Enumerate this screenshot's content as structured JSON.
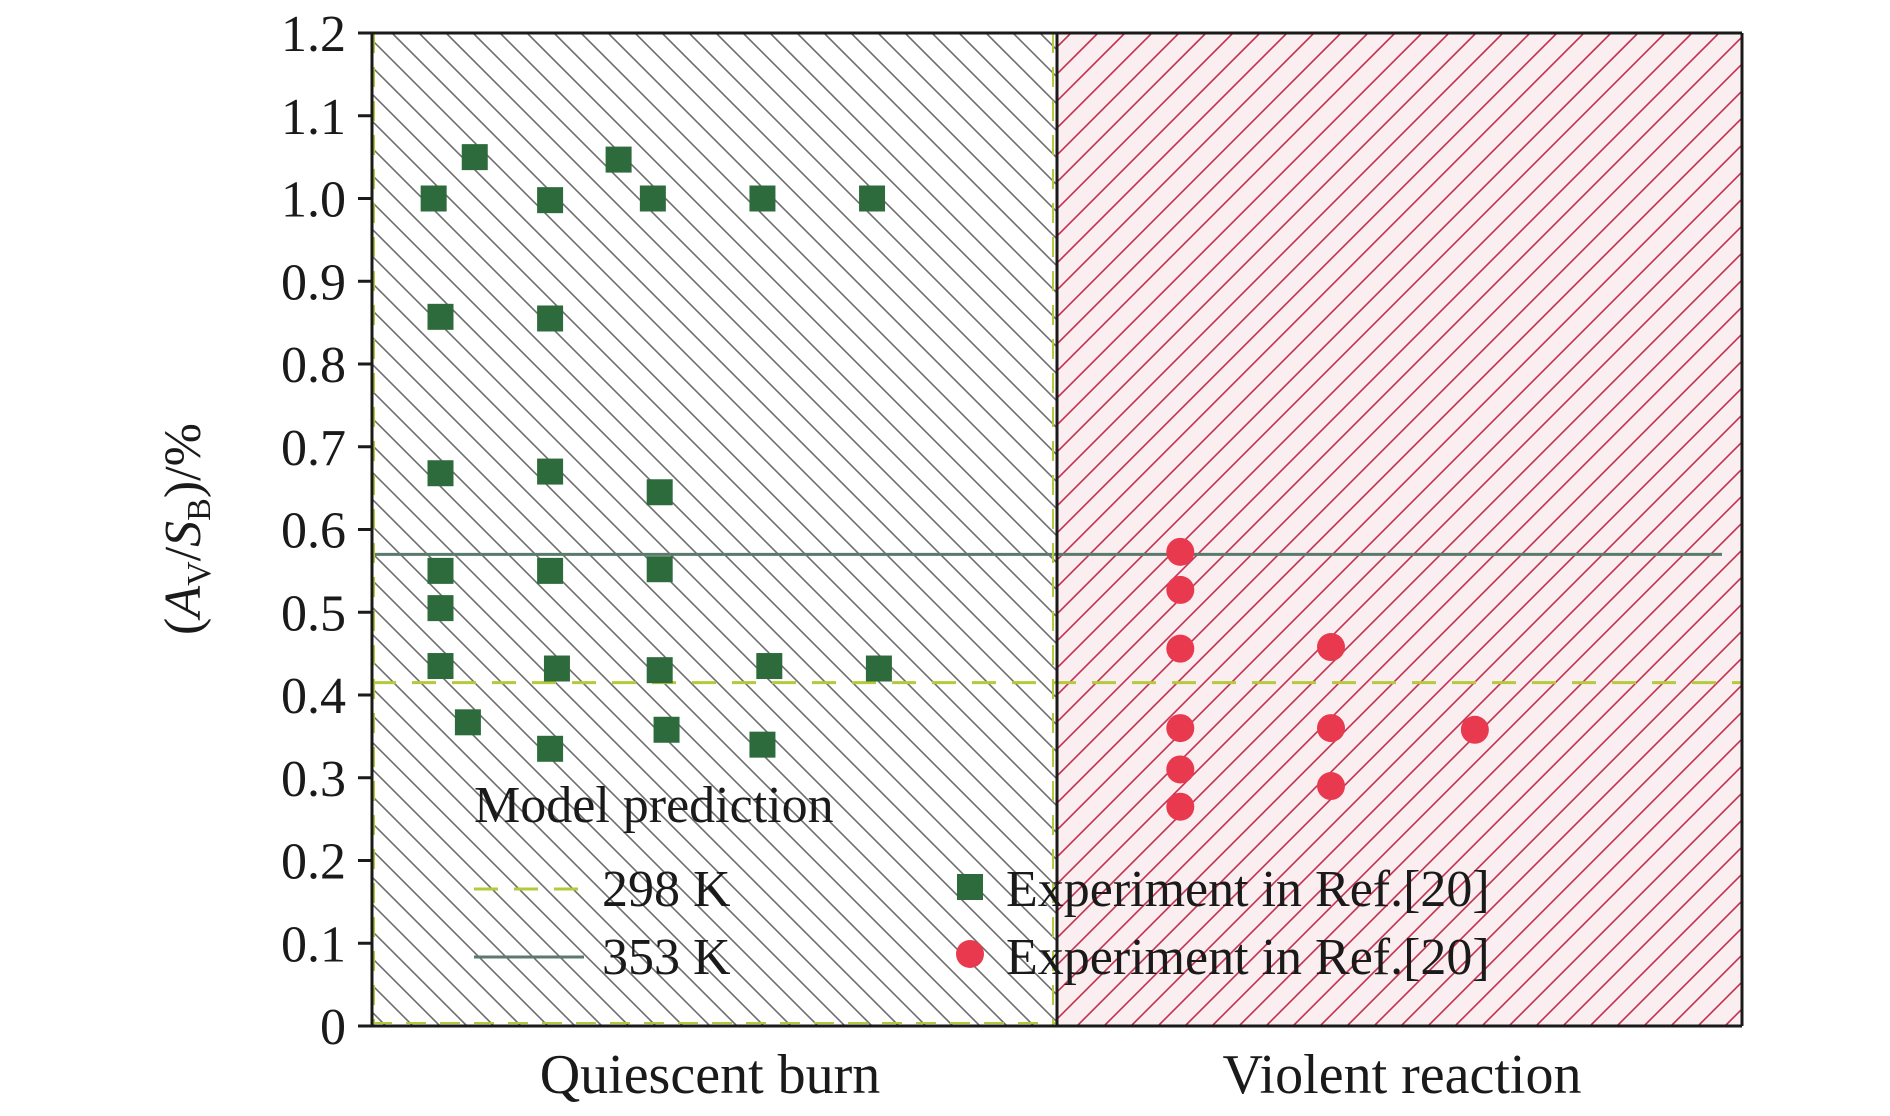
{
  "chart_data": {
    "type": "scatter",
    "ylabel": {
      "A": "A",
      "A_sub": "V",
      "S": "S",
      "S_sub": "B",
      "unit": ")/%"
    },
    "ylim": [
      0,
      1.2
    ],
    "yticks": [
      "0",
      "0.1",
      "0.2",
      "0.3",
      "0.4",
      "0.5",
      "0.6",
      "0.7",
      "0.8",
      "0.9",
      "1.0",
      "1.1",
      "1.2"
    ],
    "x_axis_range": [
      0,
      10
    ],
    "regions": [
      {
        "label": "Quiescent burn",
        "x_range": [
          0,
          5
        ],
        "hatch_color": "#6e6e6e",
        "fill": "#ffffff"
      },
      {
        "label": "Violent reaction",
        "x_range": [
          5,
          10
        ],
        "hatch_color": "#c4304e",
        "fill": "#fbeef0"
      }
    ],
    "reference_lines": [
      {
        "name": "298 K",
        "y": 0.415,
        "style": "dashed",
        "color": "#b5c93c"
      },
      {
        "name": "353 K",
        "y": 0.57,
        "style": "solid",
        "color": "#5a7a6c"
      }
    ],
    "legend": {
      "heading": "Model prediction",
      "placement": "bottom-left",
      "experiment_label_1": "Experiment in Ref.[20]",
      "experiment_label_2": "Experiment in Ref.[20]"
    },
    "series": [
      {
        "marker": "square",
        "color": "#2e6b3c",
        "points": [
          [
            0.45,
            1.0
          ],
          [
            0.75,
            1.05
          ],
          [
            1.3,
            0.998
          ],
          [
            1.8,
            1.047
          ],
          [
            2.05,
            1.0
          ],
          [
            2.85,
            1.0
          ],
          [
            3.65,
            1.0
          ],
          [
            0.5,
            0.857
          ],
          [
            1.3,
            0.855
          ],
          [
            0.5,
            0.668
          ],
          [
            1.3,
            0.67
          ],
          [
            2.1,
            0.645
          ],
          [
            0.5,
            0.55
          ],
          [
            1.3,
            0.55
          ],
          [
            2.1,
            0.552
          ],
          [
            0.5,
            0.505
          ],
          [
            0.5,
            0.435
          ],
          [
            1.35,
            0.432
          ],
          [
            2.1,
            0.43
          ],
          [
            2.9,
            0.435
          ],
          [
            3.7,
            0.432
          ],
          [
            0.7,
            0.367
          ],
          [
            1.3,
            0.335
          ],
          [
            2.15,
            0.358
          ],
          [
            2.85,
            0.34
          ]
        ]
      },
      {
        "marker": "circle",
        "color": "#e8394f",
        "points": [
          [
            5.9,
            0.573
          ],
          [
            5.9,
            0.527
          ],
          [
            5.9,
            0.456
          ],
          [
            7.0,
            0.458
          ],
          [
            5.9,
            0.36
          ],
          [
            7.0,
            0.36
          ],
          [
            8.05,
            0.358
          ],
          [
            5.9,
            0.31
          ],
          [
            7.0,
            0.29
          ],
          [
            5.9,
            0.265
          ]
        ]
      }
    ]
  }
}
